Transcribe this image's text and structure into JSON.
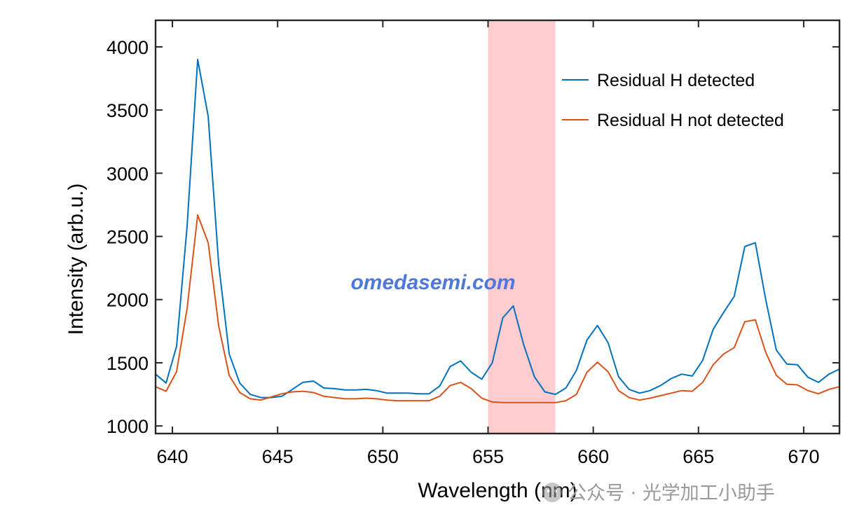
{
  "chart_data": {
    "type": "line",
    "xlabel": "Wavelength (nm)",
    "ylabel": "Intensity (arb.u.)",
    "xlim": [
      639.2,
      671.7
    ],
    "ylim": [
      940,
      4210
    ],
    "xticks": [
      640,
      645,
      650,
      655,
      660,
      665,
      670
    ],
    "yticks": [
      1000,
      1500,
      2000,
      2500,
      3000,
      3500,
      4000
    ],
    "xtick_labels": [
      "640",
      "645",
      "650",
      "655",
      "660",
      "665",
      "670"
    ],
    "ytick_labels": [
      "1000",
      "1500",
      "2000",
      "2500",
      "3000",
      "3500",
      "4000"
    ],
    "grid": false,
    "legend_position": "top-right",
    "highlight_band": {
      "x": [
        655.0,
        658.2
      ],
      "color": "#ffcccf"
    },
    "x": [
      639.2,
      639.7,
      640.2,
      640.7,
      641.2,
      641.7,
      642.2,
      642.7,
      643.2,
      643.7,
      644.2,
      644.7,
      645.2,
      645.7,
      646.2,
      646.7,
      647.2,
      647.7,
      648.2,
      648.7,
      649.2,
      649.7,
      650.2,
      650.7,
      651.2,
      651.7,
      652.2,
      652.7,
      653.2,
      653.7,
      654.2,
      654.7,
      655.2,
      655.7,
      656.2,
      656.7,
      657.2,
      657.7,
      658.2,
      658.7,
      659.2,
      659.7,
      660.2,
      660.7,
      661.2,
      661.7,
      662.2,
      662.7,
      663.2,
      663.7,
      664.2,
      664.7,
      665.2,
      665.7,
      666.2,
      666.7,
      667.2,
      667.7,
      668.2,
      668.7,
      669.2,
      669.7,
      670.2,
      670.7,
      671.2,
      671.7
    ],
    "series": [
      {
        "name": "Residual H detected",
        "color": "#0072bd",
        "values": [
          1410,
          1340,
          1630,
          2580,
          3900,
          3450,
          2280,
          1570,
          1340,
          1250,
          1225,
          1225,
          1235,
          1290,
          1345,
          1355,
          1300,
          1295,
          1285,
          1285,
          1290,
          1280,
          1260,
          1260,
          1260,
          1255,
          1255,
          1315,
          1470,
          1515,
          1425,
          1370,
          1500,
          1855,
          1950,
          1640,
          1390,
          1270,
          1250,
          1300,
          1440,
          1680,
          1795,
          1660,
          1390,
          1290,
          1260,
          1280,
          1320,
          1375,
          1410,
          1395,
          1520,
          1765,
          1900,
          2025,
          2420,
          2450,
          1995,
          1600,
          1490,
          1485,
          1385,
          1345,
          1410,
          1450
        ]
      },
      {
        "name": "Residual H not detected",
        "color": "#d95319",
        "values": [
          1310,
          1275,
          1430,
          1930,
          2670,
          2450,
          1790,
          1400,
          1265,
          1215,
          1205,
          1230,
          1255,
          1270,
          1275,
          1265,
          1235,
          1225,
          1215,
          1215,
          1220,
          1215,
          1205,
          1200,
          1200,
          1200,
          1200,
          1235,
          1320,
          1345,
          1295,
          1220,
          1190,
          1185,
          1185,
          1185,
          1185,
          1185,
          1185,
          1200,
          1250,
          1425,
          1505,
          1430,
          1280,
          1225,
          1205,
          1220,
          1240,
          1260,
          1280,
          1275,
          1345,
          1485,
          1570,
          1620,
          1825,
          1840,
          1580,
          1400,
          1330,
          1325,
          1280,
          1255,
          1290,
          1310
        ]
      }
    ]
  },
  "watermark": {
    "url": "omedasemi.com",
    "wechat": "公众号 · 光学加工小助手"
  }
}
